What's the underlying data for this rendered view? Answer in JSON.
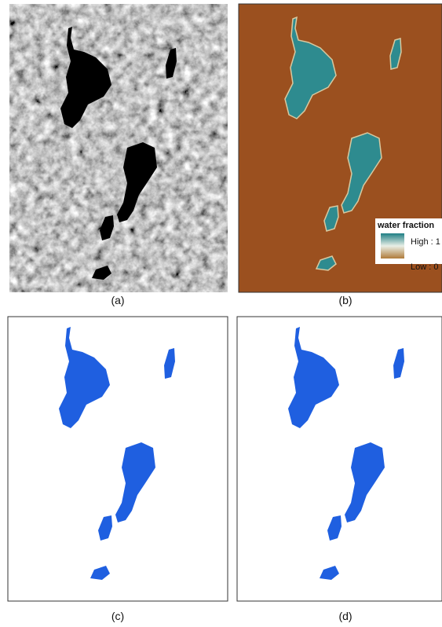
{
  "panels": [
    {
      "label": "(a)"
    },
    {
      "label": "(b)",
      "legend": {
        "title": "water fraction",
        "high": "High : 1",
        "low": "Low : 0"
      }
    },
    {
      "label": "(c)"
    },
    {
      "label": "(d)"
    }
  ]
}
